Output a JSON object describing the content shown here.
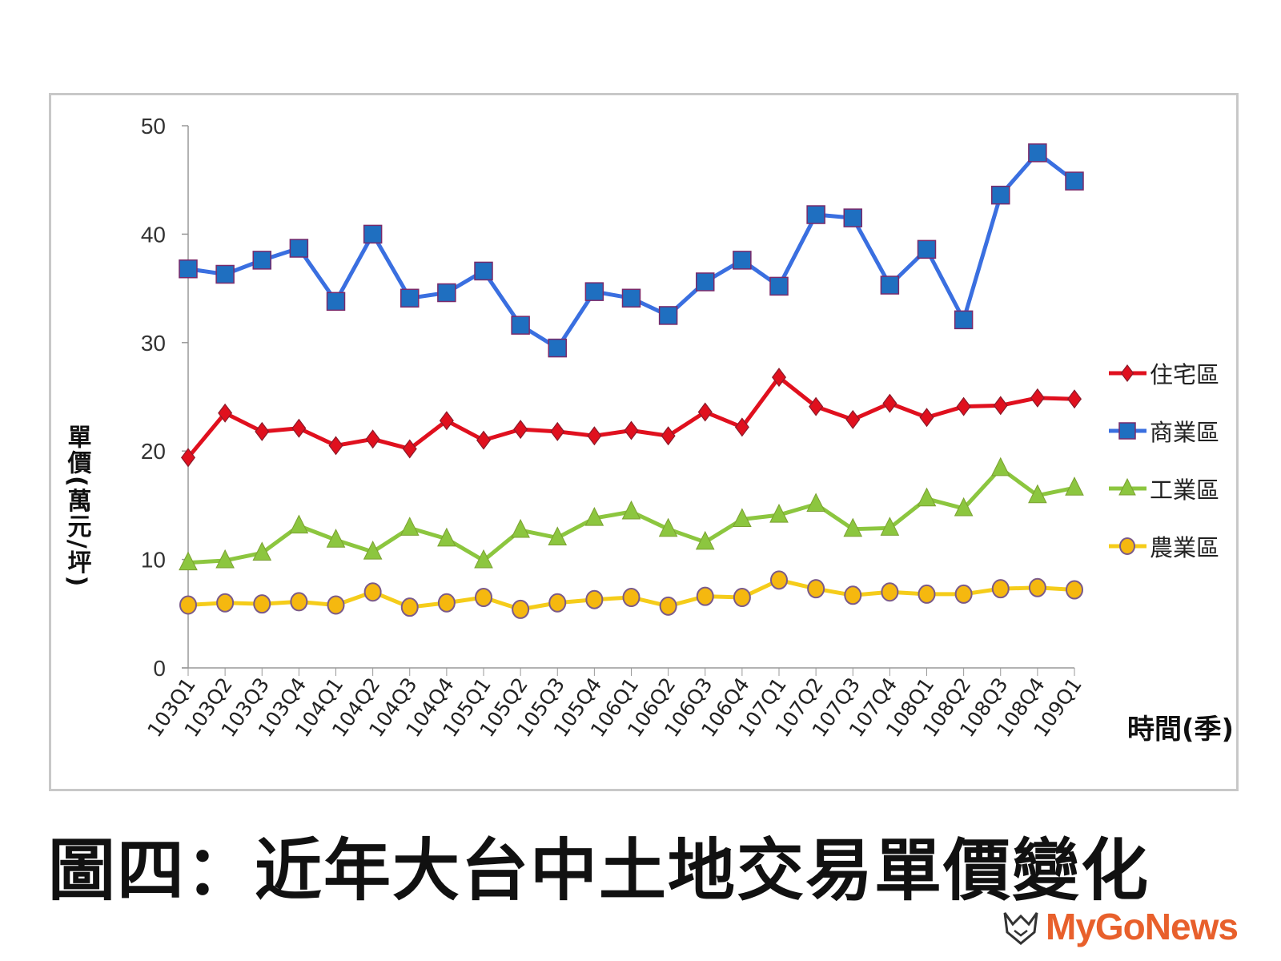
{
  "chart_data": {
    "type": "line",
    "title": "",
    "ylabel": "單價(萬元/坪)",
    "xlabel": "時間(季)",
    "ylim": [
      0,
      50
    ],
    "yticks": [
      0,
      10,
      20,
      30,
      40,
      50
    ],
    "grid": false,
    "legend_position": "right",
    "categories": [
      "103Q1",
      "103Q2",
      "103Q3",
      "103Q4",
      "104Q1",
      "104Q2",
      "104Q3",
      "104Q4",
      "105Q1",
      "105Q2",
      "105Q3",
      "105Q4",
      "106Q1",
      "106Q2",
      "106Q3",
      "106Q4",
      "107Q1",
      "107Q2",
      "107Q3",
      "107Q4",
      "108Q1",
      "108Q2",
      "108Q3",
      "108Q4",
      "109Q1"
    ],
    "series": [
      {
        "name": "住宅區",
        "color": "#e0101e",
        "marker": "diamond",
        "values": [
          19.4,
          23.5,
          21.8,
          22.1,
          20.5,
          21.1,
          20.2,
          22.8,
          21.0,
          22.0,
          21.8,
          21.4,
          21.9,
          21.4,
          23.6,
          22.2,
          26.8,
          24.1,
          22.9,
          24.4,
          23.1,
          24.1,
          24.2,
          24.9,
          24.8
        ]
      },
      {
        "name": "商業區",
        "color": "#3a6fe0",
        "marker": "square",
        "values": [
          36.8,
          36.3,
          37.6,
          38.7,
          33.8,
          40.0,
          34.1,
          34.6,
          36.6,
          31.6,
          29.5,
          34.7,
          34.1,
          32.5,
          35.6,
          37.6,
          35.2,
          41.8,
          41.5,
          35.3,
          38.6,
          32.1,
          43.6,
          47.5,
          44.9
        ]
      },
      {
        "name": "工業區",
        "color": "#8cc63f",
        "marker": "triangle",
        "values": [
          9.7,
          9.9,
          10.6,
          13.1,
          11.8,
          10.7,
          12.9,
          11.9,
          9.9,
          12.7,
          12.0,
          13.8,
          14.4,
          12.8,
          11.6,
          13.7,
          14.1,
          15.1,
          12.8,
          12.9,
          15.6,
          14.7,
          18.4,
          15.9,
          16.6
        ]
      },
      {
        "name": "農業區",
        "color": "#f5cc1a",
        "marker": "circle",
        "values": [
          5.8,
          6.0,
          5.9,
          6.1,
          5.8,
          7.0,
          5.6,
          6.0,
          6.5,
          5.4,
          6.0,
          6.3,
          6.5,
          5.7,
          6.6,
          6.5,
          8.1,
          7.3,
          6.7,
          7.0,
          6.8,
          6.8,
          7.3,
          7.4,
          7.2
        ]
      }
    ]
  },
  "caption": "圖四：近年大台中土地交易單價變化",
  "logo": {
    "text": "MyGoNews",
    "color": "#e8602c"
  }
}
